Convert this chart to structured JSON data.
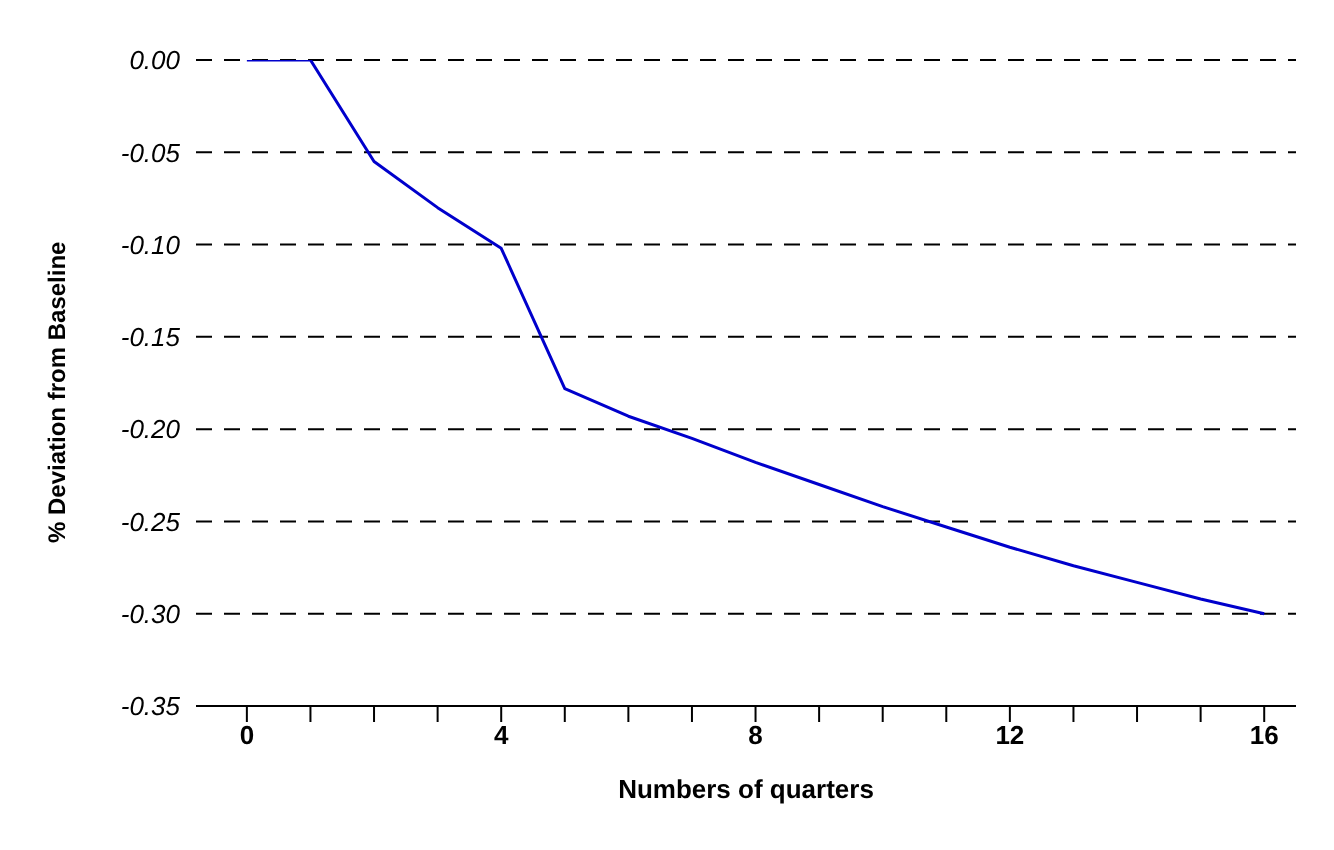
{
  "chart_data": {
    "type": "line",
    "xlabel": "Numbers of quarters",
    "ylabel": "% Deviation from Baseline",
    "x": [
      0,
      1,
      2,
      3,
      4,
      5,
      6,
      7,
      8,
      9,
      10,
      11,
      12,
      13,
      14,
      15,
      16
    ],
    "series": [
      {
        "color": "#0000cc",
        "values": [
          0,
          0,
          -0.055,
          -0.08,
          -0.102,
          -0.178,
          -0.193,
          -0.205,
          -0.218,
          -0.23,
          -0.242,
          -0.253,
          -0.264,
          -0.274,
          -0.283,
          -0.292,
          -0.3
        ]
      }
    ],
    "xlim": [
      -0.8,
      16.5
    ],
    "xticks": [
      0,
      {
        "value": 1,
        "label": null
      },
      {
        "value": 2,
        "label": null
      },
      {
        "value": 3,
        "label": null
      },
      4,
      {
        "value": 5,
        "label": null
      },
      {
        "value": 6,
        "label": null
      },
      {
        "value": 7,
        "label": null
      },
      8,
      {
        "value": 9,
        "label": null
      },
      {
        "value": 10,
        "label": null
      },
      {
        "value": 11,
        "label": null
      },
      12,
      {
        "value": 13,
        "label": null
      },
      {
        "value": 14,
        "label": null
      },
      {
        "value": 15,
        "label": null
      },
      16
    ],
    "ylim": [
      -0.35,
      0
    ],
    "yticks": [
      {
        "value": 0,
        "label": "0.00"
      },
      {
        "value": -0.05,
        "label": "-0.05"
      },
      {
        "value": -0.1,
        "label": "-0.10"
      },
      {
        "value": -0.15,
        "label": "-0.15"
      },
      {
        "value": -0.2,
        "label": "-0.20"
      },
      {
        "value": -0.25,
        "label": "-0.25"
      },
      {
        "value": -0.3,
        "label": "-0.30"
      },
      {
        "value": -0.35,
        "label": "-0.35"
      }
    ],
    "grid": "y",
    "legend": false,
    "marker": "none",
    "line_style": "solid"
  }
}
